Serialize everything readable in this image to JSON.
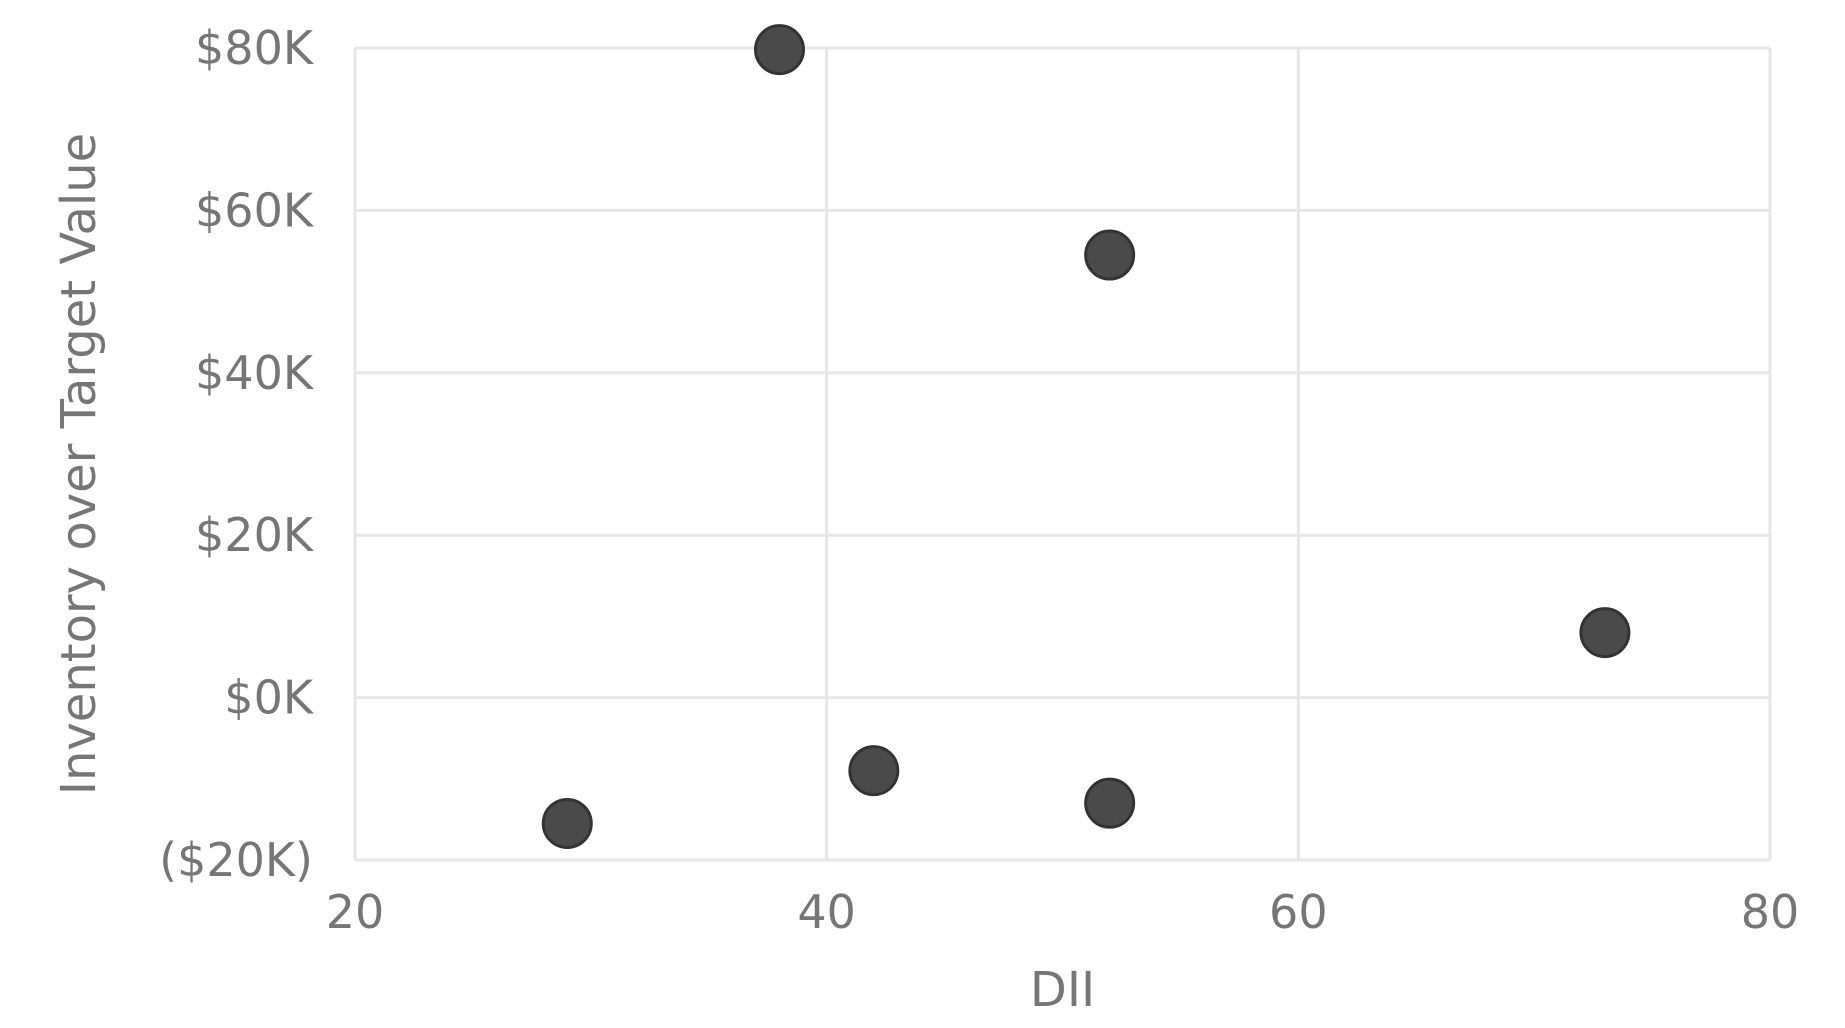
{
  "chart_data": {
    "type": "scatter",
    "title": "",
    "xlabel": "DII",
    "ylabel": "Inventory over Target Value",
    "xlim": [
      20,
      80
    ],
    "ylim": [
      -20000,
      80000
    ],
    "x_ticks": [
      20,
      40,
      60,
      80
    ],
    "x_tick_labels": [
      "20",
      "40",
      "60",
      "80"
    ],
    "y_ticks": [
      -20000,
      0,
      20000,
      40000,
      60000,
      80000
    ],
    "y_tick_labels": [
      "($20K)",
      "$0K",
      "$20K",
      "$40K",
      "$60K",
      "$80K"
    ],
    "grid": true,
    "colors": {
      "marker": "#4a4a4a",
      "marker_edge": "#333333",
      "grid": "#e6e6e6",
      "text": "#767676"
    },
    "points": [
      {
        "x": 38,
        "y": 79800
      },
      {
        "x": 52,
        "y": 54500
      },
      {
        "x": 73,
        "y": 8000
      },
      {
        "x": 42,
        "y": -9000
      },
      {
        "x": 52,
        "y": -13000
      },
      {
        "x": 29,
        "y": -15500
      }
    ]
  }
}
